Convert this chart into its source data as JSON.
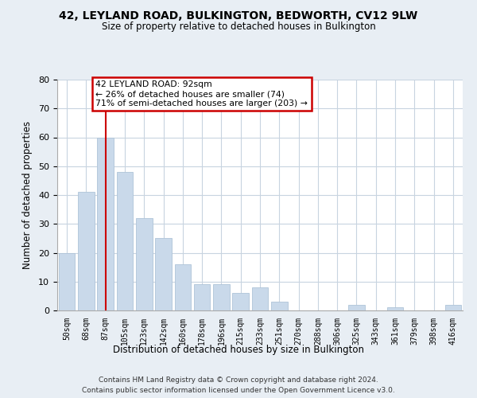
{
  "title": "42, LEYLAND ROAD, BULKINGTON, BEDWORTH, CV12 9LW",
  "subtitle": "Size of property relative to detached houses in Bulkington",
  "xlabel": "Distribution of detached houses by size in Bulkington",
  "ylabel": "Number of detached properties",
  "bar_labels": [
    "50sqm",
    "68sqm",
    "87sqm",
    "105sqm",
    "123sqm",
    "142sqm",
    "160sqm",
    "178sqm",
    "196sqm",
    "215sqm",
    "233sqm",
    "251sqm",
    "270sqm",
    "288sqm",
    "306sqm",
    "325sqm",
    "343sqm",
    "361sqm",
    "379sqm",
    "398sqm",
    "416sqm"
  ],
  "bar_values": [
    20,
    41,
    60,
    48,
    32,
    25,
    16,
    9,
    9,
    6,
    8,
    3,
    0,
    0,
    0,
    2,
    0,
    1,
    0,
    0,
    2
  ],
  "bar_color": "#c9d9ea",
  "bar_edge_color": "#afc4d8",
  "highlight_bar_index": 2,
  "highlight_line_color": "#cc0000",
  "ylim": [
    0,
    80
  ],
  "yticks": [
    0,
    10,
    20,
    30,
    40,
    50,
    60,
    70,
    80
  ],
  "annotation_title": "42 LEYLAND ROAD: 92sqm",
  "annotation_line1": "← 26% of detached houses are smaller (74)",
  "annotation_line2": "71% of semi-detached houses are larger (203) →",
  "annotation_box_color": "#ffffff",
  "annotation_box_edge": "#cc0000",
  "footer_line1": "Contains HM Land Registry data © Crown copyright and database right 2024.",
  "footer_line2": "Contains public sector information licensed under the Open Government Licence v3.0.",
  "background_color": "#e8eef4",
  "plot_bg_color": "#ffffff",
  "grid_color": "#c8d4e0"
}
